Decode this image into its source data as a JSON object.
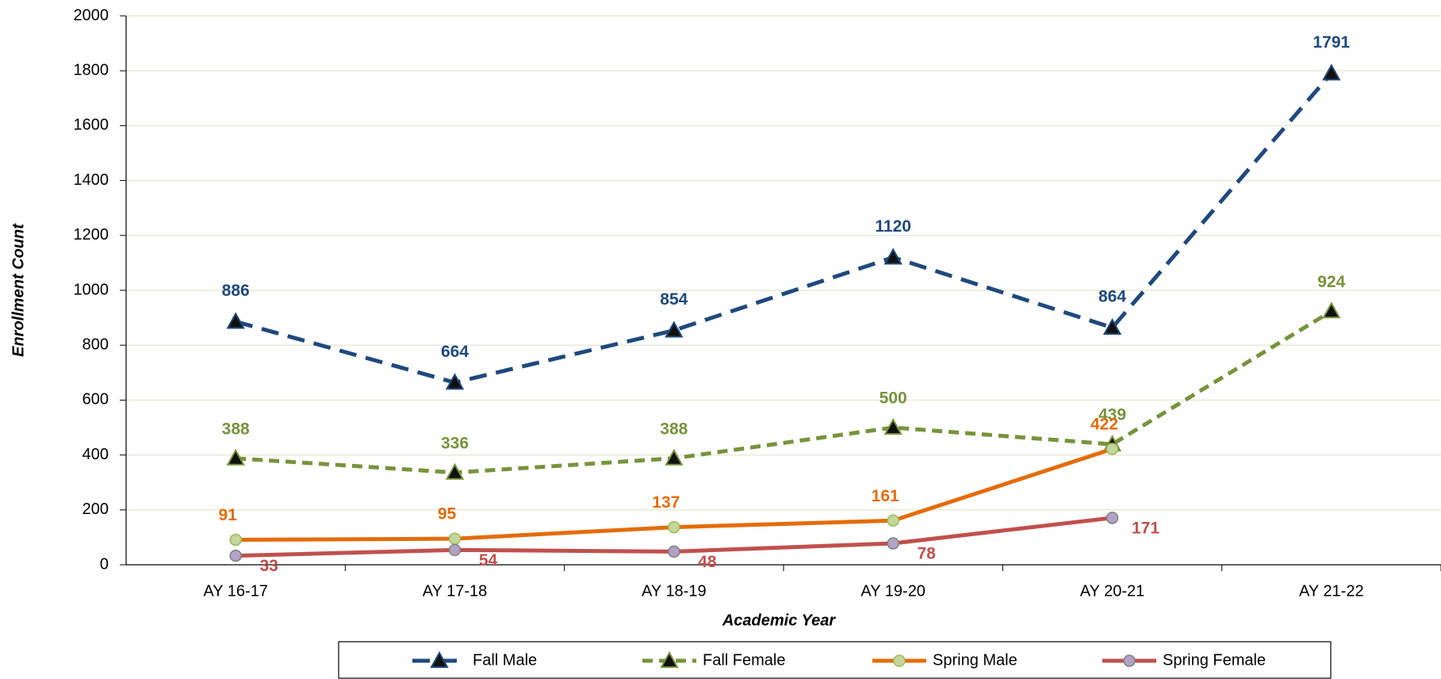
{
  "chart_data": {
    "type": "line",
    "x_label": "Academic Year",
    "y_label": "Enrollment Count",
    "categories": [
      "AY 16-17",
      "AY 17-18",
      "AY 18-19",
      "AY 19-20",
      "AY 20-21",
      "AY 21-22"
    ],
    "series": [
      {
        "name": "Fall Male",
        "color": "#1f497d",
        "line_style": "dashed",
        "marker": "triangle",
        "values": [
          886,
          664,
          854,
          1120,
          864,
          1791
        ]
      },
      {
        "name": "Fall Female",
        "color": "#77933c",
        "line_style": "short-dashed",
        "marker": "triangle",
        "values": [
          388,
          336,
          388,
          500,
          439,
          924
        ]
      },
      {
        "name": "Spring Male",
        "color": "#e46c0a",
        "line_style": "solid",
        "marker": "circle",
        "values": [
          91,
          95,
          137,
          161,
          422,
          null
        ]
      },
      {
        "name": "Spring Female",
        "color": "#c0504d",
        "line_style": "solid",
        "marker": "circle",
        "values": [
          33,
          54,
          48,
          78,
          171,
          null
        ]
      }
    ],
    "ylim": [
      0,
      2000
    ],
    "yticks": [
      0,
      200,
      400,
      600,
      800,
      1000,
      1200,
      1400,
      1600,
      1800,
      2000
    ],
    "grid": true,
    "legend": "bottom"
  }
}
